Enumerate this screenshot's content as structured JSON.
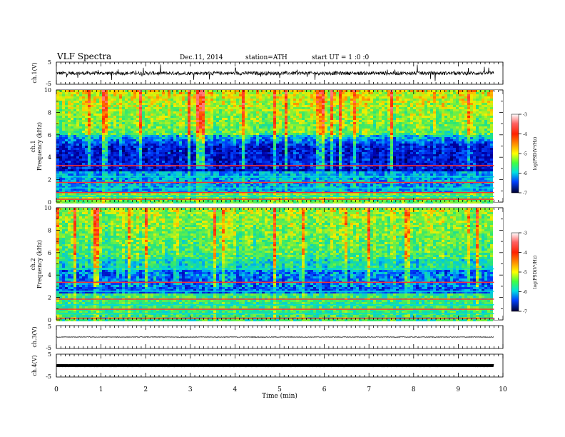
{
  "header": {
    "title": "VLF  Spectra",
    "date": "Dec.11, 2014",
    "station": "station=ATH",
    "start": "start  UT  =   1  :0  :0"
  },
  "chart_data": [
    {
      "type": "line",
      "name": "ch.1 waveform",
      "ylabel": "ch.1(V)",
      "ylim": [
        -5,
        5
      ],
      "yticks": [
        "5",
        "-5"
      ],
      "xlim": [
        0,
        10
      ],
      "data_end_min": 9.8,
      "level": 0.0
    },
    {
      "type": "heatmap",
      "name": "ch.1 spectrogram",
      "ylabel_channel": "ch.1",
      "ylabel": "Frequency  (kHz)",
      "ylim": [
        0,
        10
      ],
      "yticks": [
        "0",
        "2",
        "4",
        "6",
        "8",
        "10"
      ],
      "xlim": [
        0,
        10
      ],
      "data_end_min": 9.8,
      "colorbar": {
        "label": "log(PSD(V²/Hz)",
        "range": [
          -7,
          -3
        ],
        "ticks": [
          "-3",
          "-4",
          "-5",
          "-6",
          "-7"
        ]
      }
    },
    {
      "type": "heatmap",
      "name": "ch.2 spectrogram",
      "ylabel_channel": "ch.2",
      "ylabel": "Frequency  (kHz)",
      "ylim": [
        0,
        10
      ],
      "yticks": [
        "0",
        "2",
        "4",
        "6",
        "8",
        "10"
      ],
      "xlim": [
        0,
        10
      ],
      "data_end_min": 9.8,
      "colorbar": {
        "label": "log(PSD(V²/Hz)",
        "range": [
          -7,
          -3
        ],
        "ticks": [
          "-3",
          "-4",
          "-5",
          "-6",
          "-7"
        ]
      }
    },
    {
      "type": "line",
      "name": "ch.3 waveform",
      "ylabel": "ch.3(V)",
      "ylim": [
        -5,
        5
      ],
      "yticks": [
        "5",
        "-5"
      ],
      "xlim": [
        0,
        10
      ],
      "data_end_min": 9.8,
      "level": 0.0
    },
    {
      "type": "line",
      "name": "ch.4 waveform",
      "ylabel": "ch.4(V)",
      "ylim": [
        -5,
        5
      ],
      "yticks": [
        "5",
        "-5"
      ],
      "xlim": [
        0,
        10
      ],
      "data_end_min": 9.8,
      "level": 0.0,
      "xlabel": "Time  (min)",
      "xticks": [
        "0",
        "1",
        "2",
        "3",
        "4",
        "5",
        "6",
        "7",
        "8",
        "9",
        "10"
      ]
    }
  ]
}
